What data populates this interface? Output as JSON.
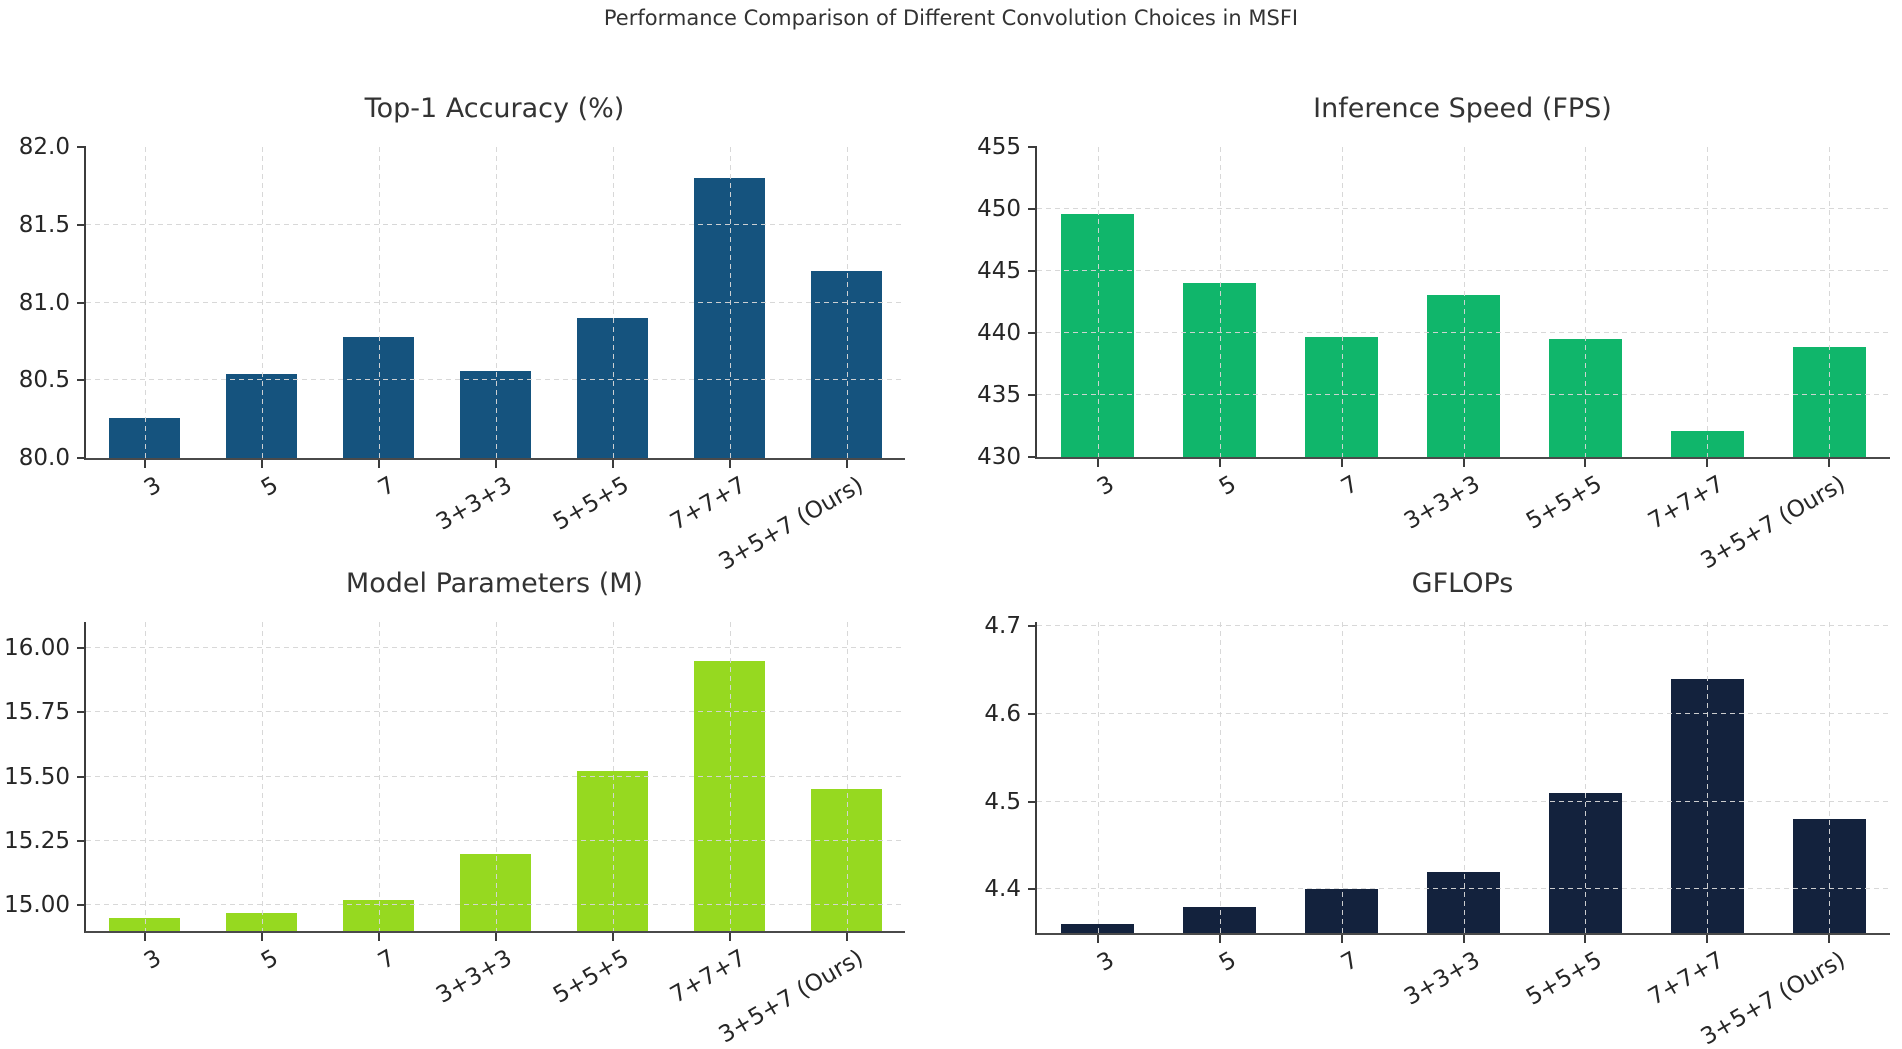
{
  "figure": {
    "title": "Performance Comparison of Different Convolution Choices in MSFI"
  },
  "categories": [
    "3",
    "5",
    "7",
    "3+3+3",
    "5+5+5",
    "7+7+7",
    "3+5+7 (Ours)"
  ],
  "chart_data": [
    {
      "type": "bar",
      "title": "Top-1 Accuracy (%)",
      "values": [
        80.26,
        80.54,
        80.78,
        80.56,
        80.9,
        81.8,
        81.2
      ],
      "ylim": [
        80.0,
        82.0
      ],
      "yticks": [
        80.0,
        80.5,
        81.0,
        81.5,
        82.0
      ],
      "ytick_labels": [
        "80.0",
        "80.5",
        "81.0",
        "81.5",
        "82.0"
      ],
      "bar_color": "#15537E",
      "grid": "dashed",
      "legend": "none"
    },
    {
      "type": "bar",
      "title": "Inference Speed (FPS)",
      "values": [
        449.6,
        444.0,
        439.7,
        443.1,
        439.5,
        432.1,
        438.9
      ],
      "ylim": [
        430,
        455
      ],
      "yticks": [
        430,
        435,
        440,
        445,
        450,
        455
      ],
      "ytick_labels": [
        "430",
        "435",
        "440",
        "445",
        "450",
        "455"
      ],
      "bar_color": "#10B66B",
      "grid": "dashed",
      "legend": "none"
    },
    {
      "type": "bar",
      "title": "Model Parameters (M)",
      "values": [
        14.95,
        14.97,
        15.02,
        15.2,
        15.52,
        15.95,
        15.45
      ],
      "ylim": [
        14.9,
        16.1
      ],
      "yticks": [
        15.0,
        15.25,
        15.5,
        15.75,
        16.0
      ],
      "ytick_labels": [
        "15.00",
        "15.25",
        "15.50",
        "15.75",
        "16.00"
      ],
      "bar_color": "#96D920",
      "grid": "dashed",
      "legend": "none"
    },
    {
      "type": "bar",
      "title": "GFLOPs",
      "values": [
        4.36,
        4.38,
        4.4,
        4.42,
        4.51,
        4.64,
        4.48
      ],
      "ylim": [
        4.35,
        4.705
      ],
      "yticks": [
        4.4,
        4.5,
        4.6,
        4.7
      ],
      "ytick_labels": [
        "4.4",
        "4.5",
        "4.6",
        "4.7"
      ],
      "bar_color": "#13223D",
      "grid": "dashed",
      "legend": "none"
    }
  ]
}
